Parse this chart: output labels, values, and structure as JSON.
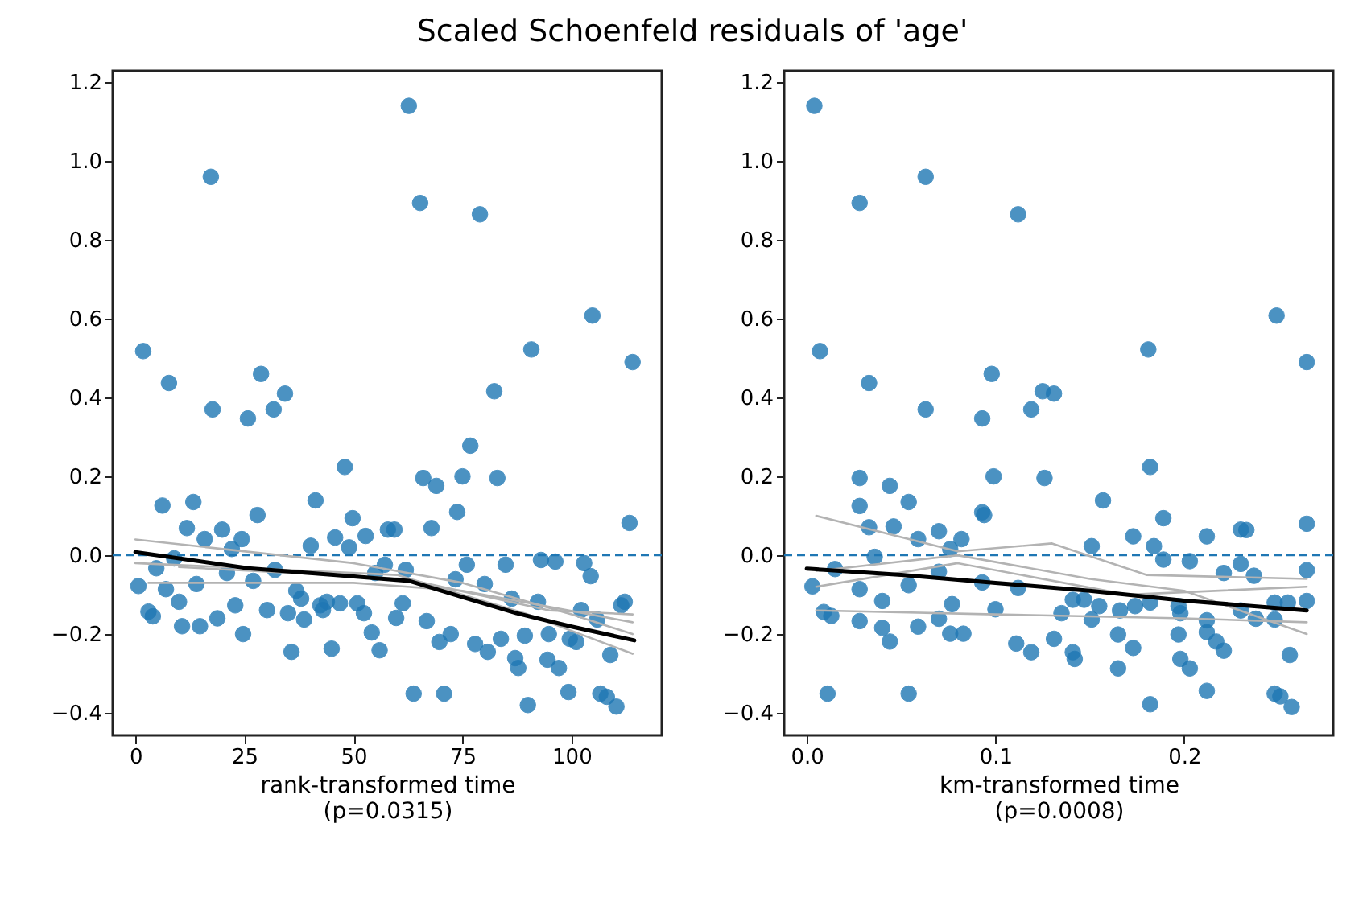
{
  "chart_data": [
    {
      "type": "scatter",
      "title": "Scaled Schoenfeld residuals of 'age'",
      "xlabel": "rank-transformed time\n(p=0.0315)",
      "xlim": [
        -5.2,
        120.7
      ],
      "ylim": [
        -0.457,
        1.229
      ],
      "xticks": [
        0,
        25,
        50,
        75,
        100
      ],
      "yticks": [
        {
          "value": -0.4,
          "label": "−0.4"
        },
        {
          "value": -0.2,
          "label": "−0.2"
        },
        {
          "value": 0,
          "label": "0.0"
        },
        {
          "value": 0.2,
          "label": "0.2"
        },
        {
          "value": 0.4,
          "label": "0.4"
        },
        {
          "value": 0.6,
          "label": "0.6"
        },
        {
          "value": 0.8,
          "label": "0.8"
        },
        {
          "value": 1,
          "label": "1.0"
        },
        {
          "value": 1.2,
          "label": "1.2"
        }
      ],
      "grid": false,
      "ref_lines": [
        {
          "axis": "y",
          "value": 0,
          "color": "#1f77b4",
          "line_style": "dashed"
        }
      ],
      "series": [
        {
          "type": "scatter",
          "marker": "circle",
          "color": "#1f77b4",
          "x": [
            62.7,
            17.3,
            65.3,
            79,
            104.8,
            1.8,
            90.8,
            114,
            7.7,
            28.8,
            34.3,
            17.7,
            25.8,
            31.7,
            82.3,
            76.8,
            48,
            66,
            69,
            75,
            83,
            73.8,
            113.3,
            6.2,
            13.3,
            41.3,
            28,
            49.8,
            11.8,
            19.9,
            15.9,
            24.4,
            22.1,
            45.8,
            49,
            52.8,
            57.9,
            59.4,
            67.9,
            40.2,
            8.9,
            4.8,
            0.7,
            7,
            10,
            14,
            21,
            27,
            32,
            3,
            4,
            10.7,
            14.8,
            18.8,
            22.9,
            24.7,
            30.2,
            35,
            36.9,
            38,
            38.7,
            35.8,
            42.4,
            43.9,
            43,
            45,
            46.9,
            50.9,
            52.4,
            54.2,
            56,
            55,
            57.2,
            62,
            61.3,
            59.8,
            63.8,
            66.8,
            70.8,
            69.7,
            72.3,
            73.4,
            76,
            77.9,
            80.1,
            80.8,
            83.8,
            84.9,
            86.3,
            87.1,
            87.8,
            89.3,
            90,
            92.3,
            93,
            96.3,
            94.5,
            94.8,
            97.1,
            99.3,
            99.6,
            101.1,
            102.2,
            102.9,
            104.4,
            105.9,
            106.6,
            108.1,
            108.9,
            110.3,
            111.4,
            112.2
          ],
          "values": [
            1.14,
            0.96,
            0.894,
            0.865,
            0.608,
            0.518,
            0.522,
            0.49,
            0.437,
            0.46,
            0.41,
            0.37,
            0.347,
            0.37,
            0.416,
            0.278,
            0.224,
            0.196,
            0.176,
            0.2,
            0.196,
            0.11,
            0.082,
            0.126,
            0.135,
            0.139,
            0.102,
            0.094,
            0.069,
            0.065,
            0.041,
            0.041,
            0.016,
            0.045,
            0.02,
            0.049,
            0.065,
            0.065,
            0.069,
            0.024,
            -0.008,
            -0.033,
            -0.078,
            -0.086,
            -0.118,
            -0.073,
            -0.045,
            -0.065,
            -0.037,
            -0.143,
            -0.155,
            -0.18,
            -0.18,
            -0.16,
            -0.127,
            -0.2,
            -0.139,
            -0.147,
            -0.09,
            -0.11,
            -0.163,
            -0.245,
            -0.127,
            -0.118,
            -0.139,
            -0.237,
            -0.122,
            -0.122,
            -0.147,
            -0.196,
            -0.241,
            -0.045,
            -0.024,
            -0.037,
            -0.122,
            -0.159,
            -0.351,
            -0.167,
            -0.351,
            -0.22,
            -0.2,
            -0.061,
            -0.024,
            -0.225,
            -0.073,
            -0.245,
            -0.212,
            -0.024,
            -0.11,
            -0.261,
            -0.286,
            -0.204,
            -0.38,
            -0.118,
            -0.012,
            -0.016,
            -0.265,
            -0.2,
            -0.286,
            -0.347,
            -0.212,
            -0.22,
            -0.139,
            -0.02,
            -0.053,
            -0.163,
            -0.351,
            -0.359,
            -0.253,
            -0.384,
            -0.127,
            -0.118
          ]
        },
        {
          "type": "line",
          "color": "#b3b3b3",
          "x": [
            0,
            50,
            75,
            100,
            114
          ],
          "values": [
            0.04,
            -0.02,
            -0.07,
            -0.15,
            -0.2
          ]
        },
        {
          "type": "line",
          "color": "#b3b3b3",
          "x": [
            3,
            50,
            75,
            114
          ],
          "values": [
            -0.07,
            -0.07,
            -0.09,
            -0.17
          ]
        },
        {
          "type": "line",
          "color": "#b3b3b3",
          "x": [
            0,
            60,
            90,
            114
          ],
          "values": [
            -0.02,
            -0.05,
            -0.15,
            -0.25
          ]
        },
        {
          "type": "line",
          "color": "#b3b3b3",
          "x": [
            10,
            62,
            95,
            114
          ],
          "values": [
            -0.03,
            -0.06,
            -0.14,
            -0.15
          ]
        },
        {
          "type": "line",
          "color": "#000000",
          "x": [
            0,
            25.8,
            49,
            62.7,
            75,
            87.4,
            99.6,
            114.4
          ],
          "values": [
            0.008,
            -0.033,
            -0.053,
            -0.065,
            -0.106,
            -0.147,
            -0.18,
            -0.216
          ]
        }
      ]
    },
    {
      "type": "scatter",
      "xlabel": "km-transformed time\n(p=0.0008)",
      "xlim": [
        -0.012,
        0.279
      ],
      "ylim": [
        -0.457,
        1.229
      ],
      "xticks": [
        {
          "value": 0,
          "label": "0.0"
        },
        0.1,
        0.2
      ],
      "yticks": [
        {
          "value": -0.4,
          "label": "−0.4"
        },
        {
          "value": -0.2,
          "label": "−0.2"
        },
        {
          "value": 0,
          "label": "0.0"
        },
        {
          "value": 0.2,
          "label": "0.2"
        },
        {
          "value": 0.4,
          "label": "0.4"
        },
        {
          "value": 0.6,
          "label": "0.6"
        },
        {
          "value": 0.8,
          "label": "0.8"
        },
        {
          "value": 1,
          "label": "1.0"
        },
        {
          "value": 1.2,
          "label": "1.2"
        }
      ],
      "grid": false,
      "ref_lines": [
        {
          "axis": "y",
          "value": 0,
          "color": "#1f77b4",
          "line_style": "dashed"
        }
      ],
      "series": [
        {
          "type": "scatter",
          "marker": "circle",
          "color": "#1f77b4",
          "x": [
            0.004,
            0.028,
            0.063,
            0.112,
            0.249,
            0.007,
            0.181,
            0.265,
            0.033,
            0.098,
            0.063,
            0.093,
            0.119,
            0.125,
            0.131,
            0.182,
            0.028,
            0.099,
            0.126,
            0.044,
            0.054,
            0.028,
            0.157,
            0.093,
            0.094,
            0.189,
            0.265,
            0.033,
            0.046,
            0.07,
            0.059,
            0.082,
            0.173,
            0.212,
            0.23,
            0.233,
            0.151,
            0.184,
            0.076,
            0.189,
            0.203,
            0.23,
            0.221,
            0.237,
            0.265,
            0.003,
            0.015,
            0.028,
            0.036,
            0.04,
            0.054,
            0.07,
            0.077,
            0.093,
            0.1,
            0.112,
            0.009,
            0.013,
            0.028,
            0.04,
            0.044,
            0.059,
            0.07,
            0.076,
            0.083,
            0.011,
            0.054,
            0.111,
            0.119,
            0.131,
            0.135,
            0.141,
            0.147,
            0.151,
            0.155,
            0.141,
            0.142,
            0.165,
            0.165,
            0.166,
            0.173,
            0.174,
            0.182,
            0.182,
            0.197,
            0.198,
            0.197,
            0.198,
            0.203,
            0.212,
            0.212,
            0.212,
            0.217,
            0.221,
            0.23,
            0.238,
            0.248,
            0.248,
            0.255,
            0.265,
            0.248,
            0.251,
            0.256,
            0.257
          ],
          "values": [
            1.14,
            0.894,
            0.96,
            0.865,
            0.608,
            0.518,
            0.522,
            0.49,
            0.437,
            0.46,
            0.37,
            0.347,
            0.37,
            0.416,
            0.41,
            0.224,
            0.196,
            0.2,
            0.196,
            0.176,
            0.135,
            0.125,
            0.139,
            0.109,
            0.102,
            0.094,
            0.08,
            0.071,
            0.073,
            0.061,
            0.041,
            0.041,
            0.048,
            0.048,
            0.065,
            0.064,
            0.023,
            0.023,
            0.016,
            -0.011,
            -0.015,
            -0.022,
            -0.045,
            -0.052,
            -0.038,
            -0.079,
            -0.035,
            -0.086,
            -0.004,
            -0.116,
            -0.076,
            -0.042,
            -0.124,
            -0.069,
            -0.137,
            -0.083,
            -0.144,
            -0.154,
            -0.167,
            -0.184,
            -0.219,
            -0.181,
            -0.161,
            -0.199,
            -0.199,
            -0.351,
            -0.351,
            -0.224,
            -0.246,
            -0.212,
            -0.147,
            -0.113,
            -0.113,
            -0.163,
            -0.129,
            -0.246,
            -0.263,
            -0.201,
            -0.287,
            -0.14,
            -0.235,
            -0.129,
            -0.378,
            -0.12,
            -0.129,
            -0.147,
            -0.201,
            -0.263,
            -0.287,
            -0.165,
            -0.344,
            -0.195,
            -0.219,
            -0.242,
            -0.14,
            -0.161,
            -0.12,
            -0.163,
            -0.12,
            -0.116,
            -0.351,
            -0.358,
            -0.253,
            -0.385
          ]
        },
        {
          "type": "line",
          "color": "#b3b3b3",
          "x": [
            0.005,
            0.08,
            0.13,
            0.18,
            0.265
          ],
          "values": [
            0.1,
            0.01,
            0.03,
            -0.05,
            -0.06
          ]
        },
        {
          "type": "line",
          "color": "#b3b3b3",
          "x": [
            0.005,
            0.1,
            0.2,
            0.265
          ],
          "values": [
            -0.14,
            -0.15,
            -0.16,
            -0.17
          ]
        },
        {
          "type": "line",
          "color": "#b3b3b3",
          "x": [
            0.005,
            0.08,
            0.15,
            0.2,
            0.265
          ],
          "values": [
            -0.04,
            0,
            -0.06,
            -0.09,
            -0.2
          ]
        },
        {
          "type": "line",
          "color": "#b3b3b3",
          "x": [
            0.005,
            0.08,
            0.17,
            0.265
          ],
          "values": [
            -0.08,
            -0.02,
            -0.1,
            -0.08
          ]
        },
        {
          "type": "line",
          "color": "#000000",
          "x": [
            0,
            0.05,
            0.1,
            0.15,
            0.2,
            0.265
          ],
          "values": [
            -0.034,
            -0.05,
            -0.07,
            -0.09,
            -0.115,
            -0.14
          ]
        }
      ]
    }
  ]
}
